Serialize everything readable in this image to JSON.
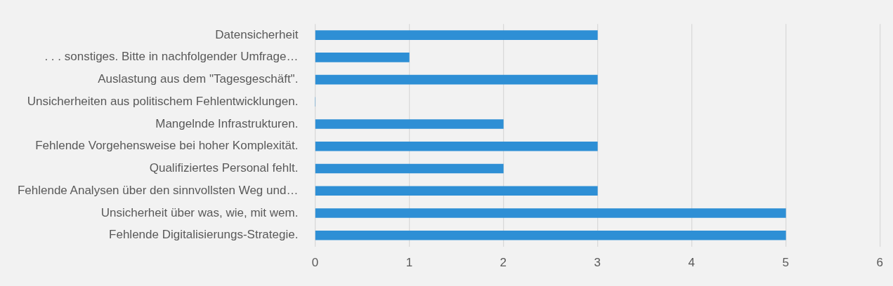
{
  "chart_data": {
    "type": "bar",
    "orientation": "horizontal",
    "categories": [
      "Datensicherheit",
      ". . . sonstiges. Bitte in nachfolgender Umfrage…",
      "Auslastung aus dem \"Tagesgeschäft\".",
      "Unsicherheiten aus politischem Fehlentwicklungen.",
      "Mangelnde Infrastrukturen.",
      "Fehlende Vorgehensweise bei hoher Komplexität.",
      "Qualifiziertes Personal fehlt.",
      "Fehlende Analysen über den sinnvollsten Weg und…",
      "Unsicherheit über was, wie, mit wem.",
      "Fehlende Digitalisierungs-Strategie."
    ],
    "values": [
      3,
      1,
      3,
      0,
      2,
      3,
      2,
      3,
      5,
      5
    ],
    "color": "#2e8fd5",
    "xlim": [
      0,
      6
    ],
    "xticks": [
      0,
      1,
      2,
      3,
      4,
      5,
      6
    ],
    "grid": "x",
    "legend": false
  }
}
